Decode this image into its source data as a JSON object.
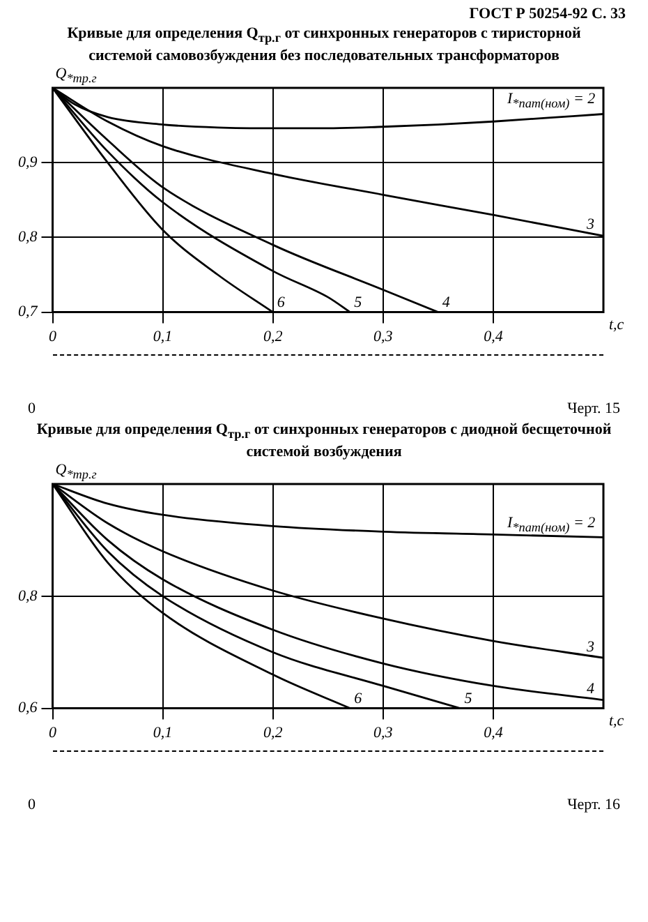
{
  "chart_data": [
    {
      "type": "line",
      "title": "Кривые для определения Q$_{тр.г}$ от синхронных генераторов с тиристорной системой самовозбуждения без последовательных трансформаторов",
      "xlabel": "t,c",
      "ylabel": "Q$_{*тр.г}$",
      "xlim": [
        0,
        0.5
      ],
      "xticks": [
        {
          "value": 0,
          "label": "0"
        },
        {
          "value": 0.1,
          "label": "0,1"
        },
        {
          "value": 0.2,
          "label": "0,2"
        },
        {
          "value": 0.3,
          "label": "0,3"
        },
        {
          "value": 0.4,
          "label": "0,4"
        }
      ],
      "ylim": [
        0.7,
        1.0
      ],
      "yticks": [
        {
          "value": 0.7,
          "label": "0,7"
        },
        {
          "value": 0.8,
          "label": "0,8"
        },
        {
          "value": 0.9,
          "label": "0,9"
        }
      ],
      "grid": true,
      "legend": false,
      "marker": "none",
      "line_style": "solid",
      "annotations": [
        "ГОСТ Р 50254-92 С. 33",
        "0",
        "Черт. 15"
      ],
      "series": [
        {
          "name": "I$_{*пат(ном)}$ = 2",
          "color": "#000000",
          "x": [
            0,
            0.02,
            0.05,
            0.1,
            0.15,
            0.2,
            0.25,
            0.3,
            0.35,
            0.4,
            0.45,
            0.5
          ],
          "values": [
            1.0,
            0.978,
            0.961,
            0.951,
            0.947,
            0.946,
            0.946,
            0.948,
            0.951,
            0.955,
            0.96,
            0.965
          ]
        },
        {
          "name": "3",
          "color": "#000000",
          "x": [
            0,
            0.05,
            0.1,
            0.2,
            0.3,
            0.4,
            0.5
          ],
          "values": [
            1.0,
            0.955,
            0.922,
            0.885,
            0.857,
            0.83,
            0.802
          ]
        },
        {
          "name": "4",
          "color": "#000000",
          "x": [
            0,
            0.05,
            0.1,
            0.2,
            0.3,
            0.35
          ],
          "values": [
            1.0,
            0.93,
            0.867,
            0.79,
            0.73,
            0.7
          ]
        },
        {
          "name": "5",
          "color": "#000000",
          "x": [
            0,
            0.05,
            0.1,
            0.2,
            0.25,
            0.27
          ],
          "values": [
            1.0,
            0.915,
            0.847,
            0.755,
            0.72,
            0.7
          ]
        },
        {
          "name": "6",
          "color": "#000000",
          "x": [
            0,
            0.05,
            0.1,
            0.15,
            0.2
          ],
          "values": [
            1.0,
            0.9,
            0.81,
            0.75,
            0.7
          ]
        }
      ]
    },
    {
      "type": "line",
      "title": "Кривые для определения Q$_{тр.г}$ от синхронных генераторов с диодной бесщеточной системой возбуждения",
      "xlabel": "t,c",
      "ylabel": "Q$_{*тр.г}$",
      "xlim": [
        0,
        0.5
      ],
      "xticks": [
        {
          "value": 0,
          "label": "0"
        },
        {
          "value": 0.1,
          "label": "0,1"
        },
        {
          "value": 0.2,
          "label": "0,2"
        },
        {
          "value": 0.3,
          "label": "0,3"
        },
        {
          "value": 0.4,
          "label": "0,4"
        }
      ],
      "ylim": [
        0.6,
        1.0
      ],
      "yticks": [
        {
          "value": 0.6,
          "label": "0,6"
        },
        {
          "value": 0.8,
          "label": "0,8"
        }
      ],
      "grid": true,
      "legend": false,
      "marker": "none",
      "line_style": "solid",
      "annotations": [
        "0",
        "Черт. 16"
      ],
      "series": [
        {
          "name": "I$_{*пат(ном)}$ = 2",
          "color": "#000000",
          "x": [
            0,
            0.05,
            0.1,
            0.2,
            0.3,
            0.4,
            0.5
          ],
          "values": [
            1.0,
            0.965,
            0.945,
            0.925,
            0.915,
            0.91,
            0.905
          ]
        },
        {
          "name": "3",
          "color": "#000000",
          "x": [
            0,
            0.05,
            0.1,
            0.2,
            0.3,
            0.4,
            0.5
          ],
          "values": [
            1.0,
            0.93,
            0.88,
            0.81,
            0.76,
            0.72,
            0.69
          ]
        },
        {
          "name": "4",
          "color": "#000000",
          "x": [
            0,
            0.05,
            0.1,
            0.2,
            0.3,
            0.4,
            0.5
          ],
          "values": [
            1.0,
            0.9,
            0.83,
            0.74,
            0.68,
            0.64,
            0.615
          ]
        },
        {
          "name": "5",
          "color": "#000000",
          "x": [
            0,
            0.05,
            0.1,
            0.2,
            0.3,
            0.37
          ],
          "values": [
            1.0,
            0.88,
            0.8,
            0.7,
            0.64,
            0.6
          ]
        },
        {
          "name": "6",
          "color": "#000000",
          "x": [
            0,
            0.05,
            0.1,
            0.2,
            0.27
          ],
          "values": [
            1.0,
            0.86,
            0.77,
            0.66,
            0.6
          ]
        }
      ]
    }
  ]
}
